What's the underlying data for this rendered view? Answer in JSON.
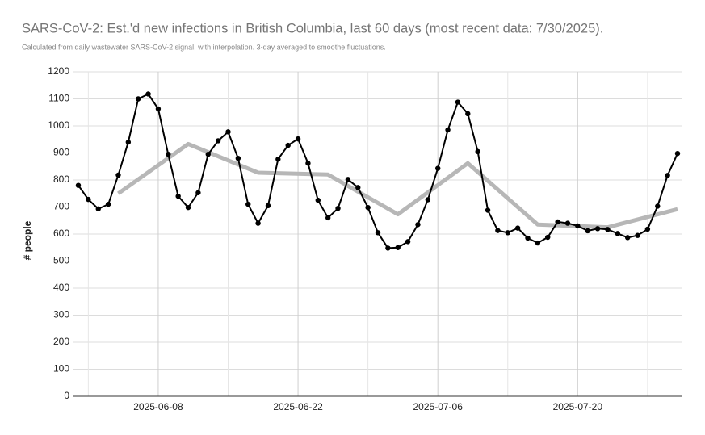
{
  "chart_data": {
    "type": "line",
    "title": "SARS-CoV-2: Est.'d new infections in British Columbia, last 60 days (most recent data: 7/30/2025).",
    "subtitle": "Calculated from daily wastewater SARS-CoV-2 signal, with interpolation. 3-day averaged to smoothe fluctuations.",
    "y_label": "# people",
    "x": [
      "2025-05-31",
      "2025-06-01",
      "2025-06-02",
      "2025-06-03",
      "2025-06-04",
      "2025-06-05",
      "2025-06-06",
      "2025-06-07",
      "2025-06-08",
      "2025-06-09",
      "2025-06-10",
      "2025-06-11",
      "2025-06-12",
      "2025-06-13",
      "2025-06-14",
      "2025-06-15",
      "2025-06-16",
      "2025-06-17",
      "2025-06-18",
      "2025-06-19",
      "2025-06-20",
      "2025-06-21",
      "2025-06-22",
      "2025-06-23",
      "2025-06-24",
      "2025-06-25",
      "2025-06-26",
      "2025-06-27",
      "2025-06-28",
      "2025-06-29",
      "2025-06-30",
      "2025-07-01",
      "2025-07-02",
      "2025-07-03",
      "2025-07-04",
      "2025-07-05",
      "2025-07-06",
      "2025-07-07",
      "2025-07-08",
      "2025-07-09",
      "2025-07-10",
      "2025-07-11",
      "2025-07-12",
      "2025-07-13",
      "2025-07-14",
      "2025-07-15",
      "2025-07-16",
      "2025-07-17",
      "2025-07-18",
      "2025-07-19",
      "2025-07-20",
      "2025-07-21",
      "2025-07-22",
      "2025-07-23",
      "2025-07-24",
      "2025-07-25",
      "2025-07-26",
      "2025-07-27",
      "2025-07-28",
      "2025-07-29",
      "2025-07-30"
    ],
    "series": [
      {
        "color": "#000000",
        "markers": true,
        "values": [
          780,
          728,
          693,
          710,
          818,
          940,
          1100,
          1118,
          1063,
          895,
          740,
          698,
          753,
          895,
          945,
          978,
          880,
          710,
          640,
          705,
          877,
          928,
          952,
          862,
          725,
          660,
          695,
          802,
          772,
          698,
          605,
          548,
          550,
          572,
          635,
          727,
          843,
          985,
          1088,
          1045,
          905,
          688,
          613,
          605,
          622,
          585,
          567,
          588,
          645,
          640,
          630,
          612,
          620,
          617,
          602,
          587,
          595,
          618,
          703,
          817,
          898
        ]
      },
      {
        "color": "#b7b7b7",
        "markers": false,
        "x": [
          "2025-06-04",
          "2025-06-11",
          "2025-06-18",
          "2025-06-25",
          "2025-07-02",
          "2025-07-09",
          "2025-07-16",
          "2025-07-23",
          "2025-07-30"
        ],
        "values": [
          750,
          933,
          827,
          820,
          673,
          862,
          635,
          625,
          692
        ]
      }
    ],
    "xlim": [
      "2025-05-31",
      "2025-07-30"
    ],
    "xticks": [
      {
        "value": "2025-06-01",
        "label": null
      },
      "2025-06-08",
      {
        "value": "2025-06-15",
        "label": null
      },
      "2025-06-22",
      {
        "value": "2025-06-29",
        "label": null
      },
      "2025-07-06",
      {
        "value": "2025-07-13",
        "label": null
      },
      "2025-07-20",
      {
        "value": "2025-07-27",
        "label": null
      }
    ],
    "ylim": [
      0,
      1200
    ],
    "yticks": [
      0,
      100,
      200,
      300,
      400,
      500,
      600,
      700,
      800,
      900,
      1000,
      1100,
      1200
    ],
    "grid": true
  }
}
